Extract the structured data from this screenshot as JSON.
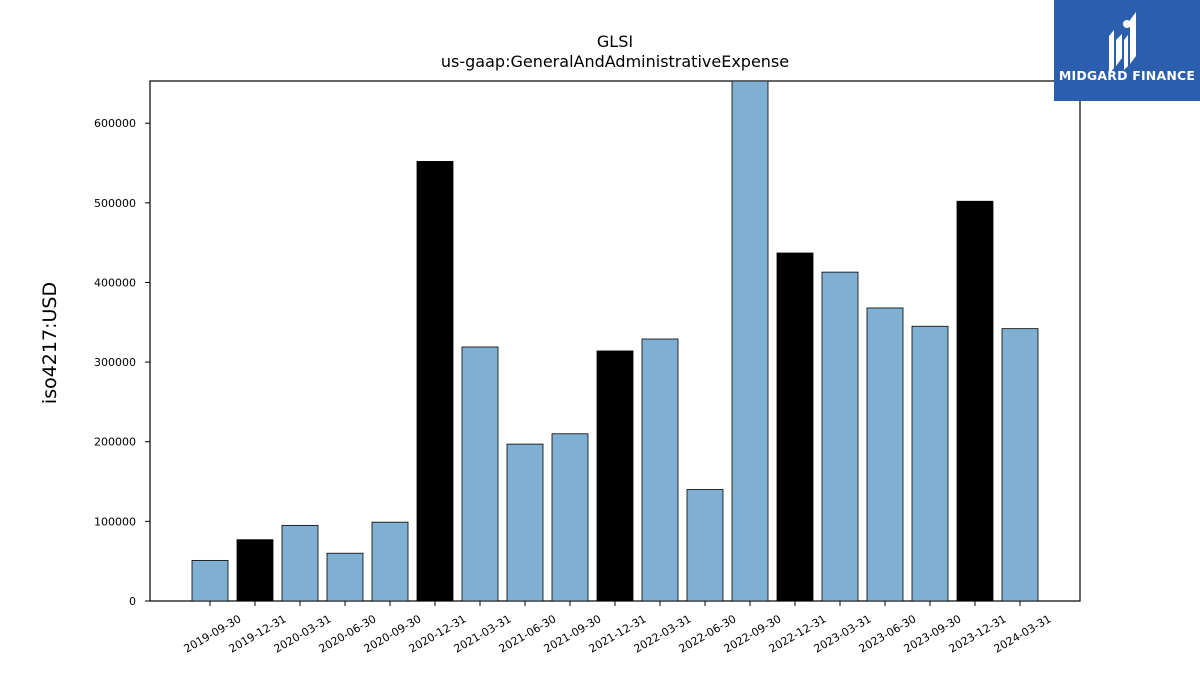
{
  "chart_data": {
    "type": "bar",
    "title": "GLSI",
    "subtitle": "us-gaap:GeneralAndAdministrativeExpense",
    "xlabel": "",
    "ylabel": "iso4217:USD",
    "categories": [
      "2019-09-30",
      "2019-12-31",
      "2020-03-31",
      "2020-06-30",
      "2020-09-30",
      "2020-12-31",
      "2021-03-31",
      "2021-06-30",
      "2021-09-30",
      "2021-12-31",
      "2022-03-31",
      "2022-06-30",
      "2022-09-30",
      "2022-12-31",
      "2023-03-31",
      "2023-06-30",
      "2023-09-30",
      "2023-12-31",
      "2024-03-31"
    ],
    "values": [
      51000,
      77000,
      95000,
      60000,
      99000,
      552000,
      319000,
      197000,
      210000,
      314000,
      329000,
      140000,
      660000,
      437000,
      413000,
      368000,
      345000,
      502000,
      342000
    ],
    "bar_colors": [
      "#7fb0d4",
      "#000000",
      "#7fb0d4",
      "#7fb0d4",
      "#7fb0d4",
      "#000000",
      "#7fb0d4",
      "#7fb0d4",
      "#7fb0d4",
      "#000000",
      "#7fb0d4",
      "#7fb0d4",
      "#7fb0d4",
      "#000000",
      "#7fb0d4",
      "#7fb0d4",
      "#7fb0d4",
      "#000000",
      "#7fb0d4"
    ],
    "ylim": [
      0,
      653000
    ],
    "yticks": [
      0,
      100000,
      200000,
      300000,
      400000,
      500000,
      600000
    ],
    "ytick_labels": [
      "0",
      "100000",
      "200000",
      "300000",
      "400000",
      "500000",
      "600000"
    ],
    "grid": false,
    "legend": "none"
  },
  "logo": {
    "text": "MIDGARD FINANCE",
    "background": "#2b5fae"
  }
}
